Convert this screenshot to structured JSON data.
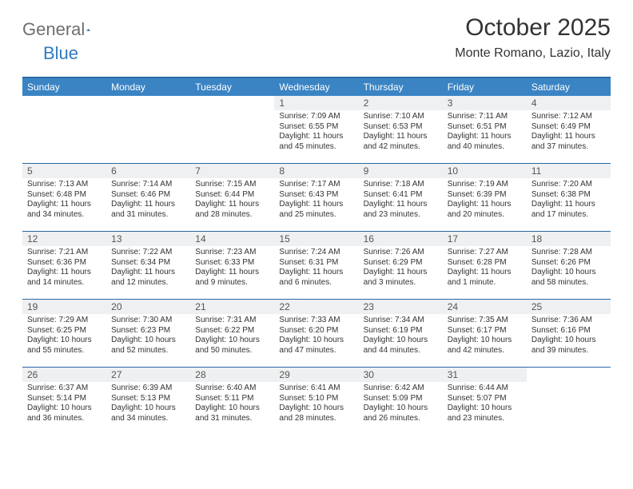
{
  "logo": {
    "textGray": "General",
    "textBlue": "Blue"
  },
  "title": "October 2025",
  "location": "Monte Romano, Lazio, Italy",
  "colors": {
    "headerBg": "#3a84c4",
    "headerBorder": "#2a6aa3",
    "dayStrip": "#eef0f1",
    "text": "#333333"
  },
  "dayNames": [
    "Sunday",
    "Monday",
    "Tuesday",
    "Wednesday",
    "Thursday",
    "Friday",
    "Saturday"
  ],
  "weeks": [
    [
      {
        "n": "",
        "sr": "",
        "ss": "",
        "dl": ""
      },
      {
        "n": "",
        "sr": "",
        "ss": "",
        "dl": ""
      },
      {
        "n": "",
        "sr": "",
        "ss": "",
        "dl": ""
      },
      {
        "n": "1",
        "sr": "Sunrise: 7:09 AM",
        "ss": "Sunset: 6:55 PM",
        "dl": "Daylight: 11 hours and 45 minutes."
      },
      {
        "n": "2",
        "sr": "Sunrise: 7:10 AM",
        "ss": "Sunset: 6:53 PM",
        "dl": "Daylight: 11 hours and 42 minutes."
      },
      {
        "n": "3",
        "sr": "Sunrise: 7:11 AM",
        "ss": "Sunset: 6:51 PM",
        "dl": "Daylight: 11 hours and 40 minutes."
      },
      {
        "n": "4",
        "sr": "Sunrise: 7:12 AM",
        "ss": "Sunset: 6:49 PM",
        "dl": "Daylight: 11 hours and 37 minutes."
      }
    ],
    [
      {
        "n": "5",
        "sr": "Sunrise: 7:13 AM",
        "ss": "Sunset: 6:48 PM",
        "dl": "Daylight: 11 hours and 34 minutes."
      },
      {
        "n": "6",
        "sr": "Sunrise: 7:14 AM",
        "ss": "Sunset: 6:46 PM",
        "dl": "Daylight: 11 hours and 31 minutes."
      },
      {
        "n": "7",
        "sr": "Sunrise: 7:15 AM",
        "ss": "Sunset: 6:44 PM",
        "dl": "Daylight: 11 hours and 28 minutes."
      },
      {
        "n": "8",
        "sr": "Sunrise: 7:17 AM",
        "ss": "Sunset: 6:43 PM",
        "dl": "Daylight: 11 hours and 25 minutes."
      },
      {
        "n": "9",
        "sr": "Sunrise: 7:18 AM",
        "ss": "Sunset: 6:41 PM",
        "dl": "Daylight: 11 hours and 23 minutes."
      },
      {
        "n": "10",
        "sr": "Sunrise: 7:19 AM",
        "ss": "Sunset: 6:39 PM",
        "dl": "Daylight: 11 hours and 20 minutes."
      },
      {
        "n": "11",
        "sr": "Sunrise: 7:20 AM",
        "ss": "Sunset: 6:38 PM",
        "dl": "Daylight: 11 hours and 17 minutes."
      }
    ],
    [
      {
        "n": "12",
        "sr": "Sunrise: 7:21 AM",
        "ss": "Sunset: 6:36 PM",
        "dl": "Daylight: 11 hours and 14 minutes."
      },
      {
        "n": "13",
        "sr": "Sunrise: 7:22 AM",
        "ss": "Sunset: 6:34 PM",
        "dl": "Daylight: 11 hours and 12 minutes."
      },
      {
        "n": "14",
        "sr": "Sunrise: 7:23 AM",
        "ss": "Sunset: 6:33 PM",
        "dl": "Daylight: 11 hours and 9 minutes."
      },
      {
        "n": "15",
        "sr": "Sunrise: 7:24 AM",
        "ss": "Sunset: 6:31 PM",
        "dl": "Daylight: 11 hours and 6 minutes."
      },
      {
        "n": "16",
        "sr": "Sunrise: 7:26 AM",
        "ss": "Sunset: 6:29 PM",
        "dl": "Daylight: 11 hours and 3 minutes."
      },
      {
        "n": "17",
        "sr": "Sunrise: 7:27 AM",
        "ss": "Sunset: 6:28 PM",
        "dl": "Daylight: 11 hours and 1 minute."
      },
      {
        "n": "18",
        "sr": "Sunrise: 7:28 AM",
        "ss": "Sunset: 6:26 PM",
        "dl": "Daylight: 10 hours and 58 minutes."
      }
    ],
    [
      {
        "n": "19",
        "sr": "Sunrise: 7:29 AM",
        "ss": "Sunset: 6:25 PM",
        "dl": "Daylight: 10 hours and 55 minutes."
      },
      {
        "n": "20",
        "sr": "Sunrise: 7:30 AM",
        "ss": "Sunset: 6:23 PM",
        "dl": "Daylight: 10 hours and 52 minutes."
      },
      {
        "n": "21",
        "sr": "Sunrise: 7:31 AM",
        "ss": "Sunset: 6:22 PM",
        "dl": "Daylight: 10 hours and 50 minutes."
      },
      {
        "n": "22",
        "sr": "Sunrise: 7:33 AM",
        "ss": "Sunset: 6:20 PM",
        "dl": "Daylight: 10 hours and 47 minutes."
      },
      {
        "n": "23",
        "sr": "Sunrise: 7:34 AM",
        "ss": "Sunset: 6:19 PM",
        "dl": "Daylight: 10 hours and 44 minutes."
      },
      {
        "n": "24",
        "sr": "Sunrise: 7:35 AM",
        "ss": "Sunset: 6:17 PM",
        "dl": "Daylight: 10 hours and 42 minutes."
      },
      {
        "n": "25",
        "sr": "Sunrise: 7:36 AM",
        "ss": "Sunset: 6:16 PM",
        "dl": "Daylight: 10 hours and 39 minutes."
      }
    ],
    [
      {
        "n": "26",
        "sr": "Sunrise: 6:37 AM",
        "ss": "Sunset: 5:14 PM",
        "dl": "Daylight: 10 hours and 36 minutes."
      },
      {
        "n": "27",
        "sr": "Sunrise: 6:39 AM",
        "ss": "Sunset: 5:13 PM",
        "dl": "Daylight: 10 hours and 34 minutes."
      },
      {
        "n": "28",
        "sr": "Sunrise: 6:40 AM",
        "ss": "Sunset: 5:11 PM",
        "dl": "Daylight: 10 hours and 31 minutes."
      },
      {
        "n": "29",
        "sr": "Sunrise: 6:41 AM",
        "ss": "Sunset: 5:10 PM",
        "dl": "Daylight: 10 hours and 28 minutes."
      },
      {
        "n": "30",
        "sr": "Sunrise: 6:42 AM",
        "ss": "Sunset: 5:09 PM",
        "dl": "Daylight: 10 hours and 26 minutes."
      },
      {
        "n": "31",
        "sr": "Sunrise: 6:44 AM",
        "ss": "Sunset: 5:07 PM",
        "dl": "Daylight: 10 hours and 23 minutes."
      },
      {
        "n": "",
        "sr": "",
        "ss": "",
        "dl": ""
      }
    ]
  ]
}
